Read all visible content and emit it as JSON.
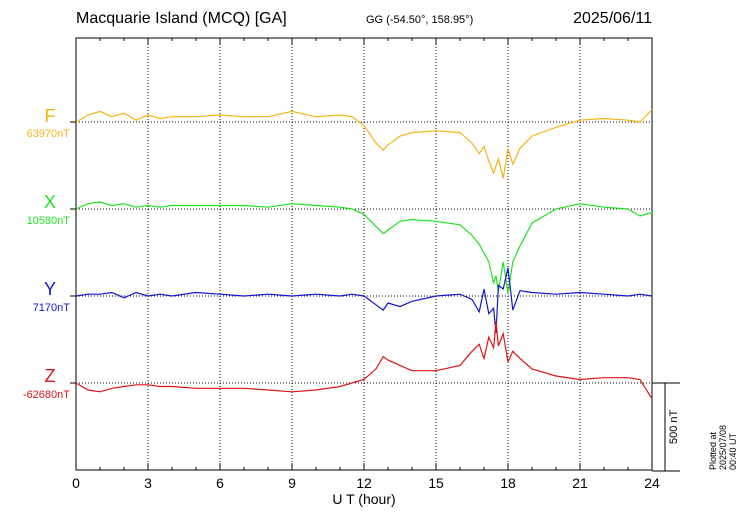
{
  "header": {
    "station": "Macquarie Island (MCQ)  [GA]",
    "coordinates": "GG (-54.50°, 158.95°)",
    "date": "2025/06/11"
  },
  "plotted_note": "Plotted at 2025/07/08 00:40 UT",
  "scale_label": "500 nT",
  "chart_data": {
    "type": "line",
    "xlabel": "U T (hour)",
    "xlim": [
      0,
      24
    ],
    "xticks": [
      "0",
      "3",
      "6",
      "9",
      "12",
      "15",
      "18",
      "21",
      "24"
    ],
    "grid": true,
    "scale_bar_nT": 500,
    "series": [
      {
        "name": "F",
        "baseline_label": "63970nT",
        "baseline_nT": 63970,
        "color": "#f5b416",
        "x": [
          0,
          0.5,
          1,
          1.5,
          2,
          2.5,
          3,
          3.5,
          4,
          5,
          6,
          7,
          8,
          9,
          10,
          11,
          11.5,
          12,
          12.5,
          12.8,
          13,
          13.5,
          14,
          15,
          16,
          16.5,
          16.8,
          17,
          17.2,
          17.4,
          17.5,
          17.6,
          17.8,
          18,
          18.2,
          18.5,
          19,
          20,
          21,
          22,
          23,
          23.5,
          24
        ],
        "y": [
          0,
          40,
          60,
          30,
          50,
          10,
          40,
          20,
          30,
          30,
          40,
          30,
          30,
          60,
          30,
          40,
          30,
          -20,
          -120,
          -160,
          -130,
          -80,
          -60,
          -50,
          -60,
          -120,
          -180,
          -140,
          -220,
          -290,
          -250,
          -210,
          -320,
          -150,
          -240,
          -150,
          -80,
          -30,
          10,
          20,
          10,
          0,
          70
        ]
      },
      {
        "name": "X",
        "baseline_label": "10580nT",
        "baseline_nT": 10580,
        "color": "#22e022",
        "x": [
          0,
          0.5,
          1,
          1.5,
          2,
          2.5,
          3,
          3.5,
          4,
          5,
          6,
          7,
          8,
          9,
          10,
          11,
          11.5,
          12,
          12.5,
          12.8,
          13,
          13.5,
          14,
          15,
          16,
          16.5,
          16.8,
          17,
          17.2,
          17.4,
          17.5,
          17.6,
          17.8,
          18,
          18.2,
          18.5,
          19,
          20,
          21,
          22,
          23,
          23.5,
          24
        ],
        "y": [
          0,
          30,
          40,
          20,
          30,
          10,
          20,
          10,
          20,
          20,
          20,
          20,
          10,
          30,
          20,
          10,
          0,
          -30,
          -100,
          -140,
          -120,
          -70,
          -60,
          -70,
          -90,
          -150,
          -200,
          -250,
          -300,
          -420,
          -380,
          -470,
          -300,
          -480,
          -300,
          -210,
          -80,
          0,
          30,
          10,
          0,
          -40,
          -20
        ]
      },
      {
        "name": "Y",
        "baseline_label": "7170nT",
        "baseline_nT": 7170,
        "color": "#1414d2",
        "x": [
          0,
          0.5,
          1,
          1.5,
          2,
          2.5,
          3,
          3.5,
          4,
          5,
          6,
          7,
          8,
          9,
          10,
          11,
          11.5,
          12,
          12.5,
          12.8,
          13,
          13.5,
          14,
          15,
          16,
          16.5,
          16.8,
          17,
          17.2,
          17.4,
          17.5,
          17.6,
          17.8,
          18,
          18.2,
          18.5,
          19,
          20,
          21,
          22,
          23,
          23.5,
          24
        ],
        "y": [
          0,
          10,
          10,
          20,
          -10,
          20,
          0,
          10,
          0,
          20,
          10,
          0,
          10,
          0,
          10,
          0,
          10,
          0,
          -50,
          -80,
          -40,
          -60,
          -30,
          0,
          10,
          -20,
          -90,
          40,
          -100,
          -70,
          -210,
          60,
          40,
          160,
          -80,
          30,
          20,
          10,
          20,
          10,
          0,
          10,
          0
        ]
      },
      {
        "name": "Z",
        "baseline_label": "-62680nT",
        "baseline_nT": -62680,
        "color": "#e01414",
        "x": [
          0,
          0.5,
          1,
          1.5,
          2,
          2.5,
          3,
          3.5,
          4,
          5,
          6,
          7,
          8,
          9,
          10,
          11,
          11.5,
          12,
          12.5,
          12.8,
          13,
          13.5,
          14,
          15,
          16,
          16.5,
          16.8,
          17,
          17.2,
          17.4,
          17.5,
          17.6,
          17.8,
          18,
          18.2,
          18.5,
          19,
          20,
          21,
          22,
          23,
          23.5,
          24
        ],
        "y": [
          0,
          -40,
          -50,
          -30,
          -20,
          -10,
          -10,
          -20,
          -20,
          -30,
          -30,
          -30,
          -40,
          -50,
          -40,
          -20,
          0,
          20,
          80,
          150,
          130,
          100,
          70,
          70,
          100,
          180,
          220,
          140,
          260,
          200,
          350,
          210,
          280,
          120,
          180,
          140,
          80,
          40,
          20,
          30,
          30,
          20,
          -90
        ]
      }
    ]
  }
}
